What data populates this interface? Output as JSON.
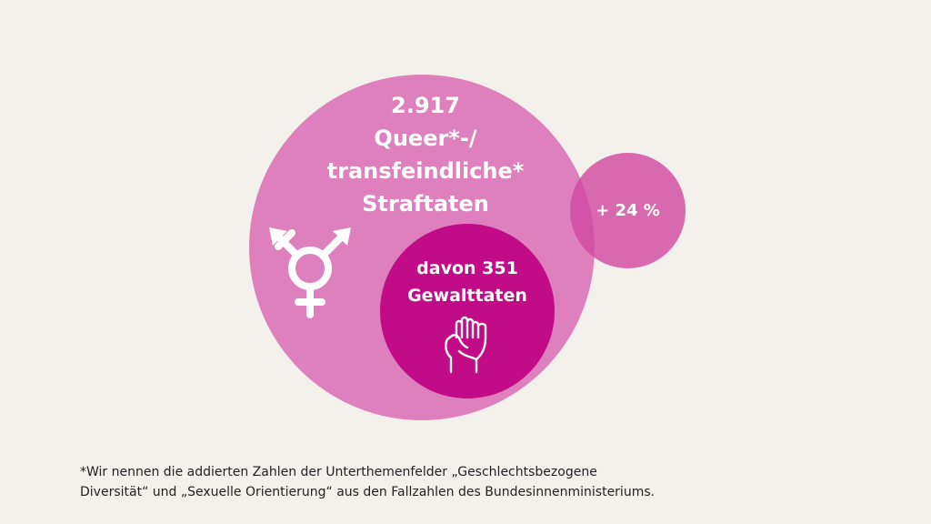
{
  "infographic": {
    "main": {
      "count": "2.917",
      "line1": "Queer*-/",
      "line2": "transfeindliche*",
      "line3": "Straftaten"
    },
    "growth": {
      "label": "+ 24 %"
    },
    "violence": {
      "line1": "davon 351",
      "line2": "Gewalttaten"
    },
    "icons": {
      "transgender": "transgender-symbol-icon",
      "fist": "raised-fist-icon"
    }
  },
  "footnote": {
    "line1": "*Wir nennen die addierten Zahlen der Unterthemenfelder „Geschlechtsbezogene",
    "line2": "Diversität“ und „Sexuelle Orientierung“ aus den Fallzahlen des Bundesinnenministeriums."
  },
  "colors": {
    "background": "#f4f0eb",
    "main_circle": "#dd80bd",
    "growth_circle": "#d147a0",
    "violence_circle": "#c20b87",
    "text_light": "#ffffff",
    "footnote_text": "#222222"
  }
}
